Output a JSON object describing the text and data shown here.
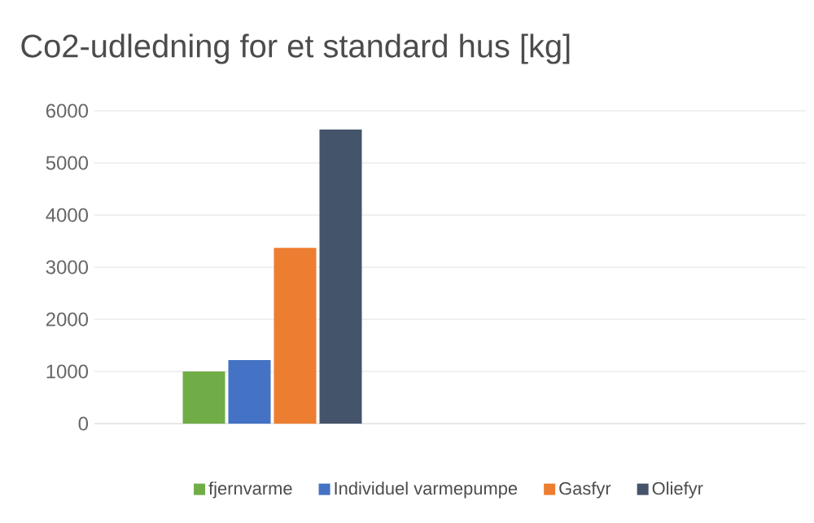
{
  "chart_data": {
    "type": "bar",
    "title": "Co2-udledning for et standard hus [kg]",
    "categories": [
      null,
      null
    ],
    "series": [
      {
        "name": "fjernvarme",
        "color": "#70ad47",
        "values": [
          1000,
          null
        ]
      },
      {
        "name": "Individuel varmepumpe",
        "color": "#4472c4",
        "values": [
          1220,
          null
        ]
      },
      {
        "name": "Gasfyr",
        "color": "#ed7d31",
        "values": [
          3370,
          null
        ]
      },
      {
        "name": "Oliefyr",
        "color": "#44546a",
        "values": [
          5640,
          null
        ]
      }
    ],
    "ylim": [
      0,
      6000
    ],
    "yticks": [
      0,
      1000,
      2000,
      3000,
      4000,
      5000,
      6000
    ],
    "grid": "y",
    "legend": "bottom"
  }
}
